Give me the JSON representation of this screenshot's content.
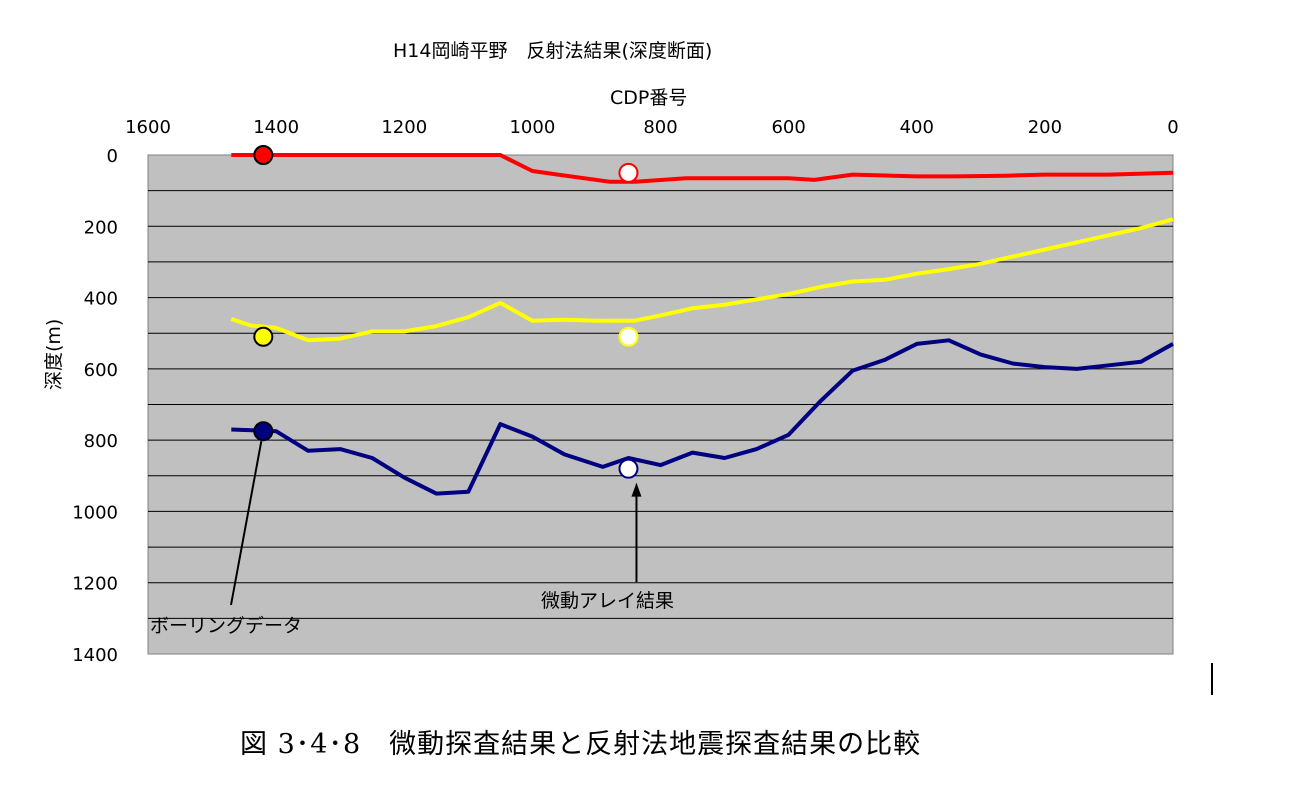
{
  "figure_caption": "図 3･4･8　微動探査結果と反射法地震探査結果の比較",
  "chart_data": {
    "type": "line",
    "title": "H14岡崎平野　反射法結果(深度断面)",
    "xlabel": "CDP番号",
    "ylabel": "深度(m)",
    "xlim": [
      1600,
      0
    ],
    "ylim": [
      1400,
      0
    ],
    "x_reversed": true,
    "y_reversed": true,
    "x_axis_position": "top",
    "x_ticks": [
      "1600",
      "1400",
      "1200",
      "1000",
      "800",
      "600",
      "400",
      "200",
      "0"
    ],
    "y_ticks": [
      "0",
      "200",
      "400",
      "600",
      "800",
      "1000",
      "1200",
      "1400"
    ],
    "plot_background": "#c0c0c0",
    "grid": true,
    "series": [
      {
        "color": "#ff0000",
        "x": [
          1470,
          1050,
          1000,
          960,
          880,
          840,
          760,
          700,
          600,
          560,
          500,
          400,
          340,
          260,
          200,
          100,
          0
        ],
        "y": [
          0,
          0,
          45,
          55,
          75,
          75,
          65,
          65,
          65,
          70,
          55,
          60,
          60,
          58,
          55,
          55,
          50
        ]
      },
      {
        "color": "#ffff00",
        "x": [
          1470,
          1440,
          1400,
          1350,
          1300,
          1250,
          1200,
          1150,
          1100,
          1050,
          1000,
          950,
          900,
          840,
          800,
          750,
          700,
          650,
          600,
          550,
          500,
          450,
          400,
          350,
          300,
          250,
          200,
          150,
          100,
          50,
          0
        ],
        "y": [
          460,
          478,
          485,
          520,
          515,
          495,
          495,
          480,
          455,
          415,
          465,
          462,
          465,
          465,
          450,
          430,
          420,
          405,
          390,
          370,
          355,
          350,
          333,
          320,
          305,
          285,
          265,
          245,
          225,
          205,
          180
        ]
      },
      {
        "color": "#000080",
        "x": [
          1470,
          1400,
          1350,
          1300,
          1250,
          1200,
          1150,
          1100,
          1050,
          1000,
          950,
          890,
          850,
          800,
          750,
          700,
          650,
          600,
          550,
          500,
          450,
          400,
          350,
          300,
          250,
          200,
          150,
          100,
          50,
          0
        ],
        "y": [
          770,
          775,
          830,
          825,
          850,
          905,
          950,
          945,
          755,
          790,
          840,
          875,
          850,
          870,
          835,
          850,
          825,
          785,
          690,
          605,
          575,
          530,
          520,
          560,
          585,
          595,
          600,
          590,
          580,
          530
        ]
      }
    ],
    "markers": [
      {
        "x": 1420,
        "y": 0,
        "fill": "#ff0000",
        "stroke": "#000000"
      },
      {
        "x": 1420,
        "y": 510,
        "fill": "#ffff00",
        "stroke": "#000000"
      },
      {
        "x": 1420,
        "y": 775,
        "fill": "#000080",
        "stroke": "#000000"
      },
      {
        "x": 850,
        "y": 50,
        "fill": "#ffffff",
        "stroke": "#ff0000"
      },
      {
        "x": 850,
        "y": 510,
        "fill": "#ffffff",
        "stroke": "#ffff00"
      },
      {
        "x": 850,
        "y": 880,
        "fill": "#ffffff",
        "stroke": "#000080"
      }
    ],
    "annotations": [
      {
        "text": "ボーリングデータ",
        "target": {
          "x": 1420,
          "y": 775
        },
        "label_at": {
          "x": 1510,
          "y": 1320
        }
      },
      {
        "text": "微動アレイ結果",
        "target": {
          "x": 850,
          "y": 880
        },
        "label_at": {
          "x": 850,
          "y": 1240
        }
      }
    ]
  }
}
